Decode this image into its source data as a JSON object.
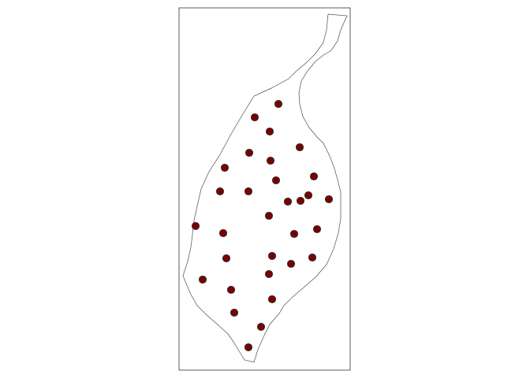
{
  "map": {
    "type": "point-map",
    "boundary": "city-outline",
    "point_count": 31,
    "colors": {
      "point_fill": "#7b0000",
      "point_stroke": "#2b2b2b",
      "boundary_stroke": "#4d4d4d",
      "frame_stroke": "#333333",
      "background": "#ffffff"
    },
    "grid": false,
    "legend": "none"
  }
}
